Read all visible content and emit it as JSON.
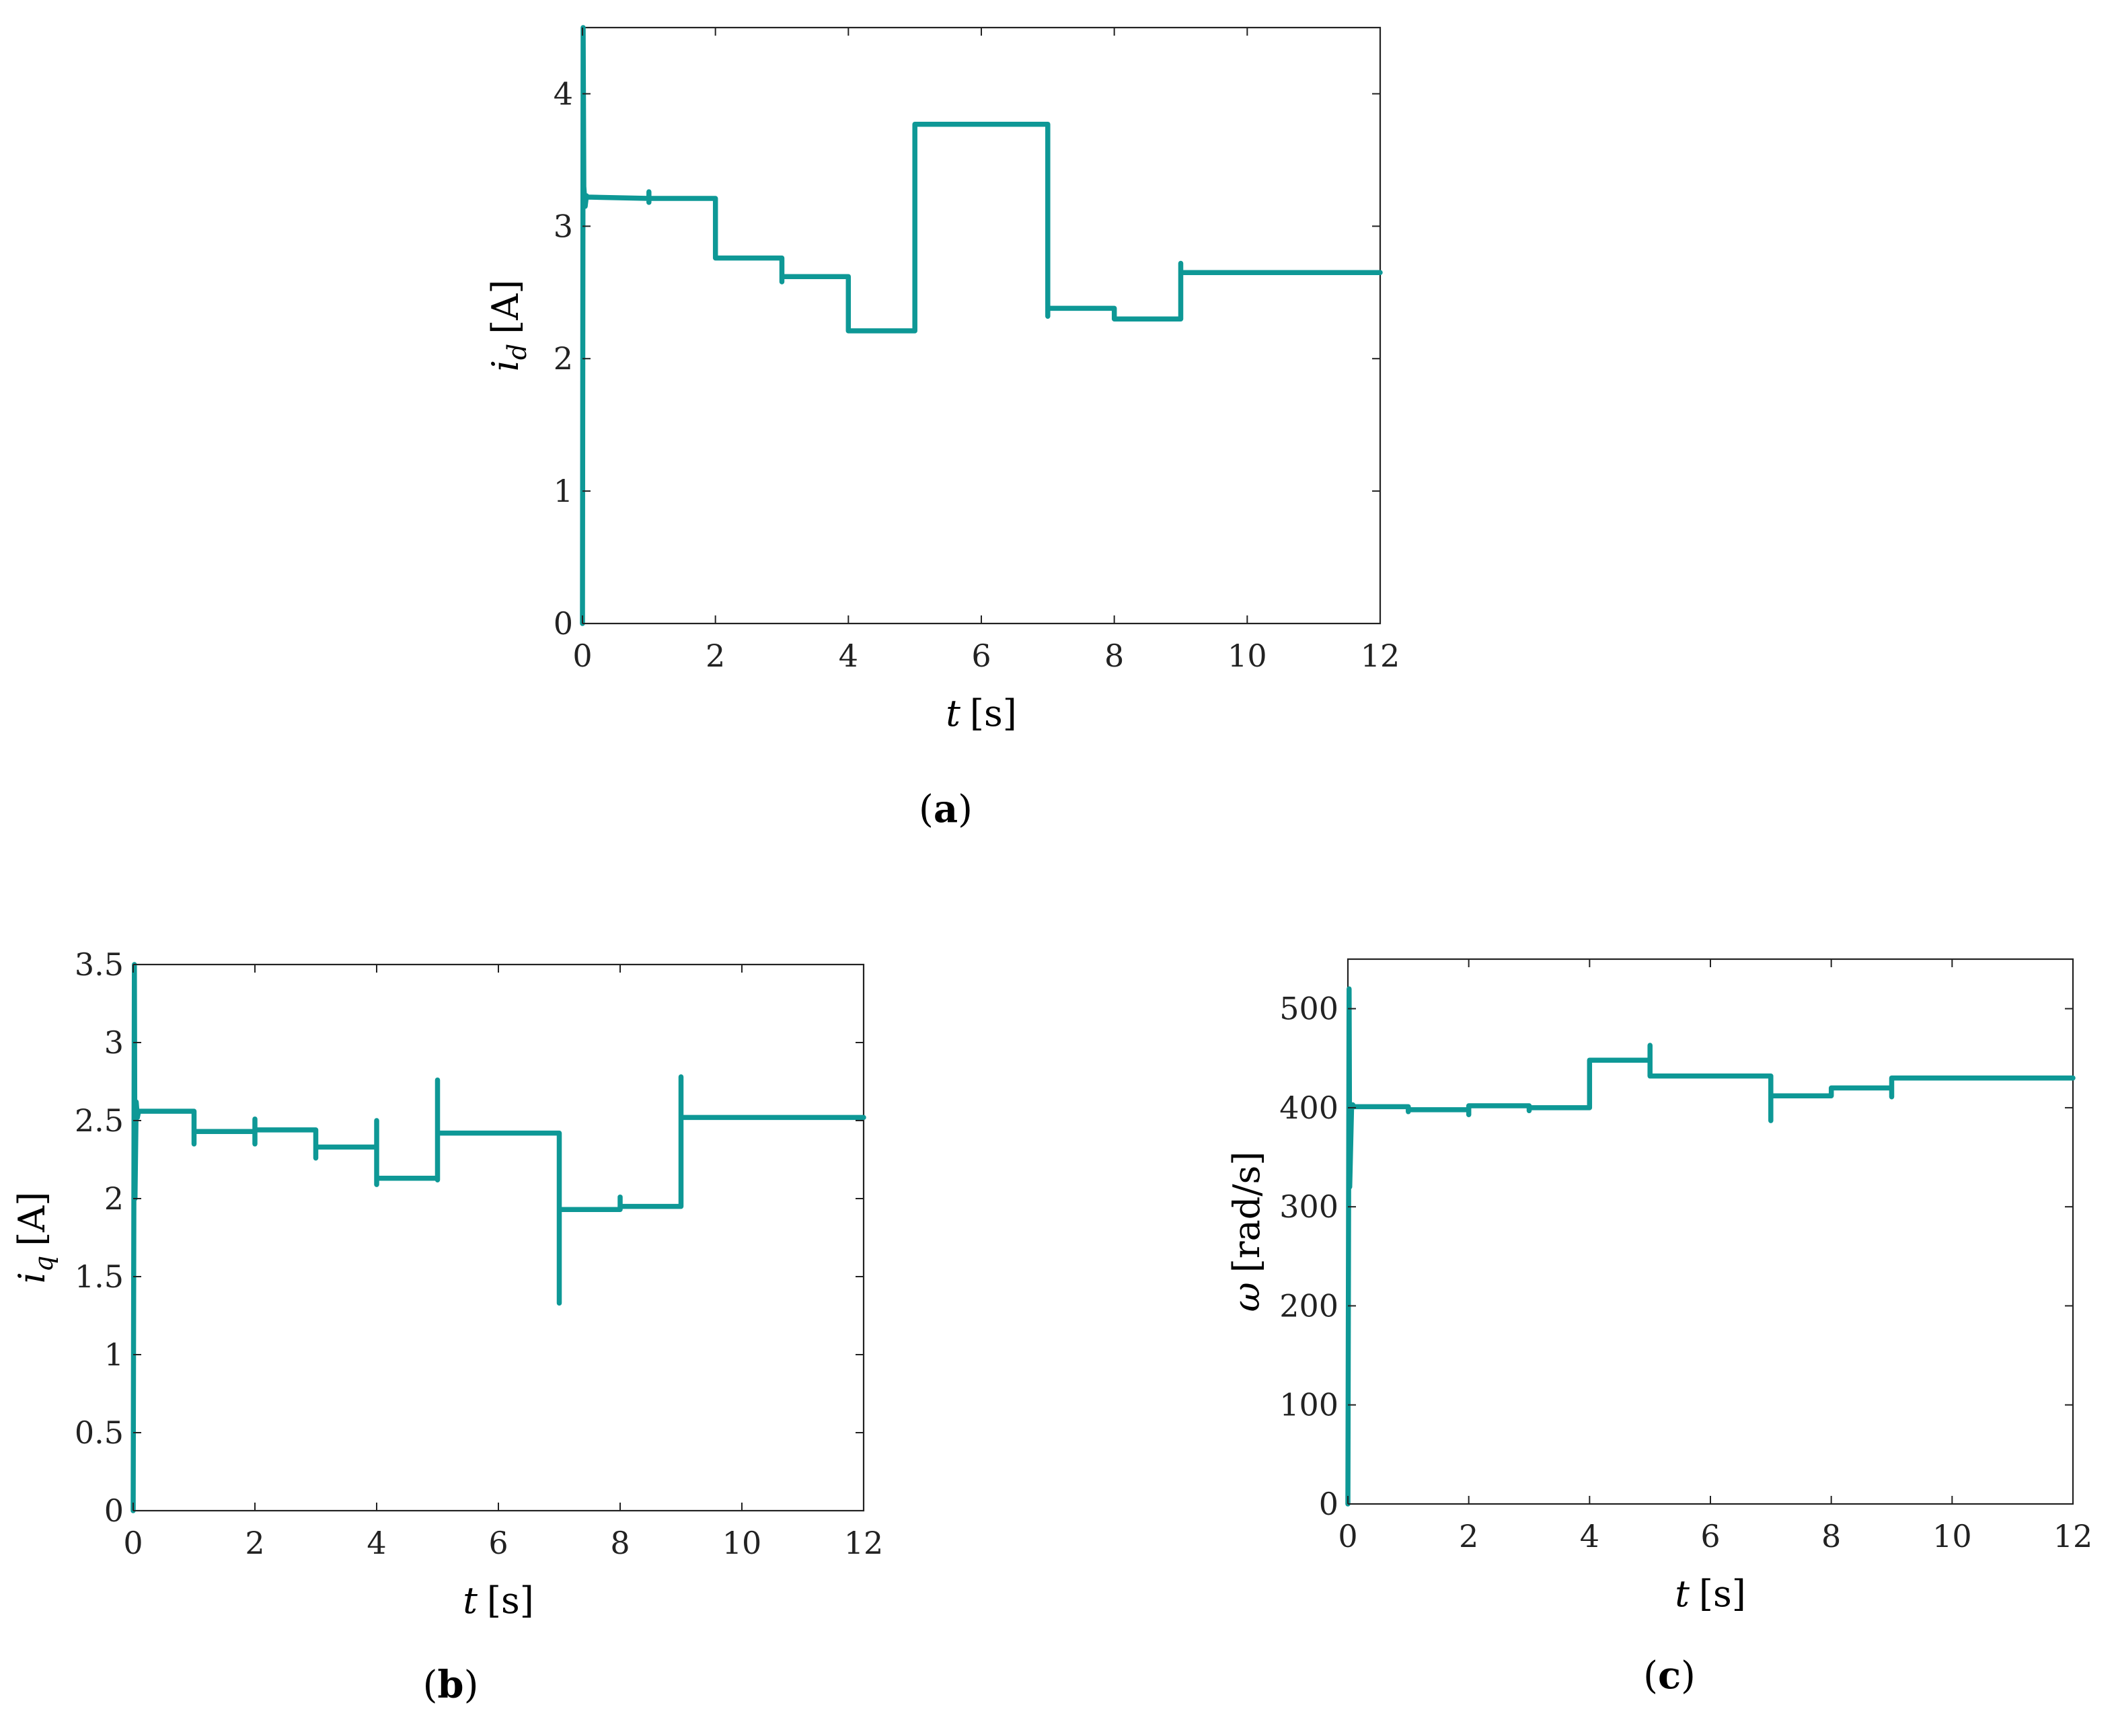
{
  "chart_data": [
    {
      "id": "a",
      "type": "line",
      "caption": {
        "letter": "a"
      },
      "xlabel": {
        "var": "t",
        "unit": "[s]"
      },
      "ylabel": {
        "var": "i",
        "sub": "d",
        "unit": "[A]"
      },
      "xlim": [
        0,
        12
      ],
      "ylim": [
        0,
        4.5
      ],
      "xticks": [
        0,
        2,
        4,
        6,
        8,
        10,
        12
      ],
      "yticks": [
        0,
        1,
        2,
        3,
        4
      ],
      "ytick_labels": [
        "0",
        "1",
        "2",
        "3",
        "4"
      ],
      "color": "#0e9896",
      "series": [
        {
          "name": "i_d",
          "x": [
            0,
            0.01,
            0.02,
            0.04,
            0.06,
            0.08,
            1,
            1,
            1,
            1,
            2,
            2,
            3,
            3,
            3,
            4,
            4,
            5,
            5,
            7,
            7,
            7,
            8,
            8,
            9,
            9,
            9,
            12
          ],
          "y": [
            0,
            4.5,
            3.3,
            3.15,
            3.23,
            3.22,
            3.21,
            3.26,
            3.18,
            3.21,
            3.21,
            2.76,
            2.76,
            2.58,
            2.62,
            2.62,
            2.21,
            2.21,
            3.77,
            3.77,
            2.32,
            2.38,
            2.38,
            2.3,
            2.3,
            2.72,
            2.65,
            2.65
          ]
        }
      ]
    },
    {
      "id": "b",
      "type": "line",
      "caption": {
        "letter": "b"
      },
      "xlabel": {
        "var": "t",
        "unit": "[s]"
      },
      "ylabel": {
        "var": "i",
        "sub": "q",
        "unit": "[A]"
      },
      "xlim": [
        0,
        12
      ],
      "ylim": [
        0,
        3.5
      ],
      "xticks": [
        0,
        2,
        4,
        6,
        8,
        10,
        12
      ],
      "yticks": [
        0,
        0.5,
        1,
        1.5,
        2,
        2.5,
        3,
        3.5
      ],
      "ytick_labels": [
        "0",
        "0.5",
        "1",
        "1.5",
        "2",
        "2.5",
        "3",
        "3.5"
      ],
      "color": "#0e9896",
      "series": [
        {
          "name": "i_q",
          "x": [
            0,
            0.02,
            0.03,
            0.05,
            0.07,
            0.09,
            1,
            1,
            1,
            2,
            2,
            2,
            2,
            3,
            3,
            3,
            4,
            4,
            4,
            4,
            5,
            5,
            5,
            5,
            7,
            7,
            7,
            8,
            8,
            8,
            9,
            9,
            9,
            12
          ],
          "y": [
            0,
            3.5,
            2.0,
            2.62,
            2.52,
            2.56,
            2.56,
            2.35,
            2.43,
            2.43,
            2.51,
            2.35,
            2.44,
            2.44,
            2.26,
            2.33,
            2.33,
            2.5,
            2.09,
            2.13,
            2.13,
            2.76,
            2.12,
            2.42,
            2.42,
            1.33,
            1.93,
            1.93,
            2.01,
            1.95,
            1.95,
            2.78,
            2.52,
            2.52
          ]
        }
      ]
    },
    {
      "id": "c",
      "type": "line",
      "caption": {
        "letter": "c"
      },
      "xlabel": {
        "var": "t",
        "unit": "[s]"
      },
      "ylabel": {
        "var": "ω",
        "unit": "[rad/s]"
      },
      "xlim": [
        0,
        12
      ],
      "ylim": [
        0,
        550
      ],
      "xticks": [
        0,
        2,
        4,
        6,
        8,
        10,
        12
      ],
      "yticks": [
        0,
        100,
        200,
        300,
        400,
        500
      ],
      "ytick_labels": [
        "0",
        "100",
        "200",
        "300",
        "400",
        "500"
      ],
      "color": "#0e9896",
      "series": [
        {
          "name": "omega",
          "x": [
            0,
            0.02,
            0.03,
            0.06,
            0.08,
            0.1,
            1,
            1,
            1,
            2,
            2,
            2,
            3,
            3,
            3,
            4,
            4,
            5,
            5,
            5,
            7,
            7,
            7,
            8,
            8,
            9,
            9,
            9,
            12
          ],
          "y": [
            0,
            520,
            320,
            398,
            403,
            401,
            401,
            396,
            398,
            398,
            393,
            402,
            402,
            397,
            400,
            400,
            448,
            448,
            463,
            432,
            432,
            387,
            412,
            412,
            420,
            420,
            411,
            430,
            430
          ]
        }
      ]
    }
  ]
}
